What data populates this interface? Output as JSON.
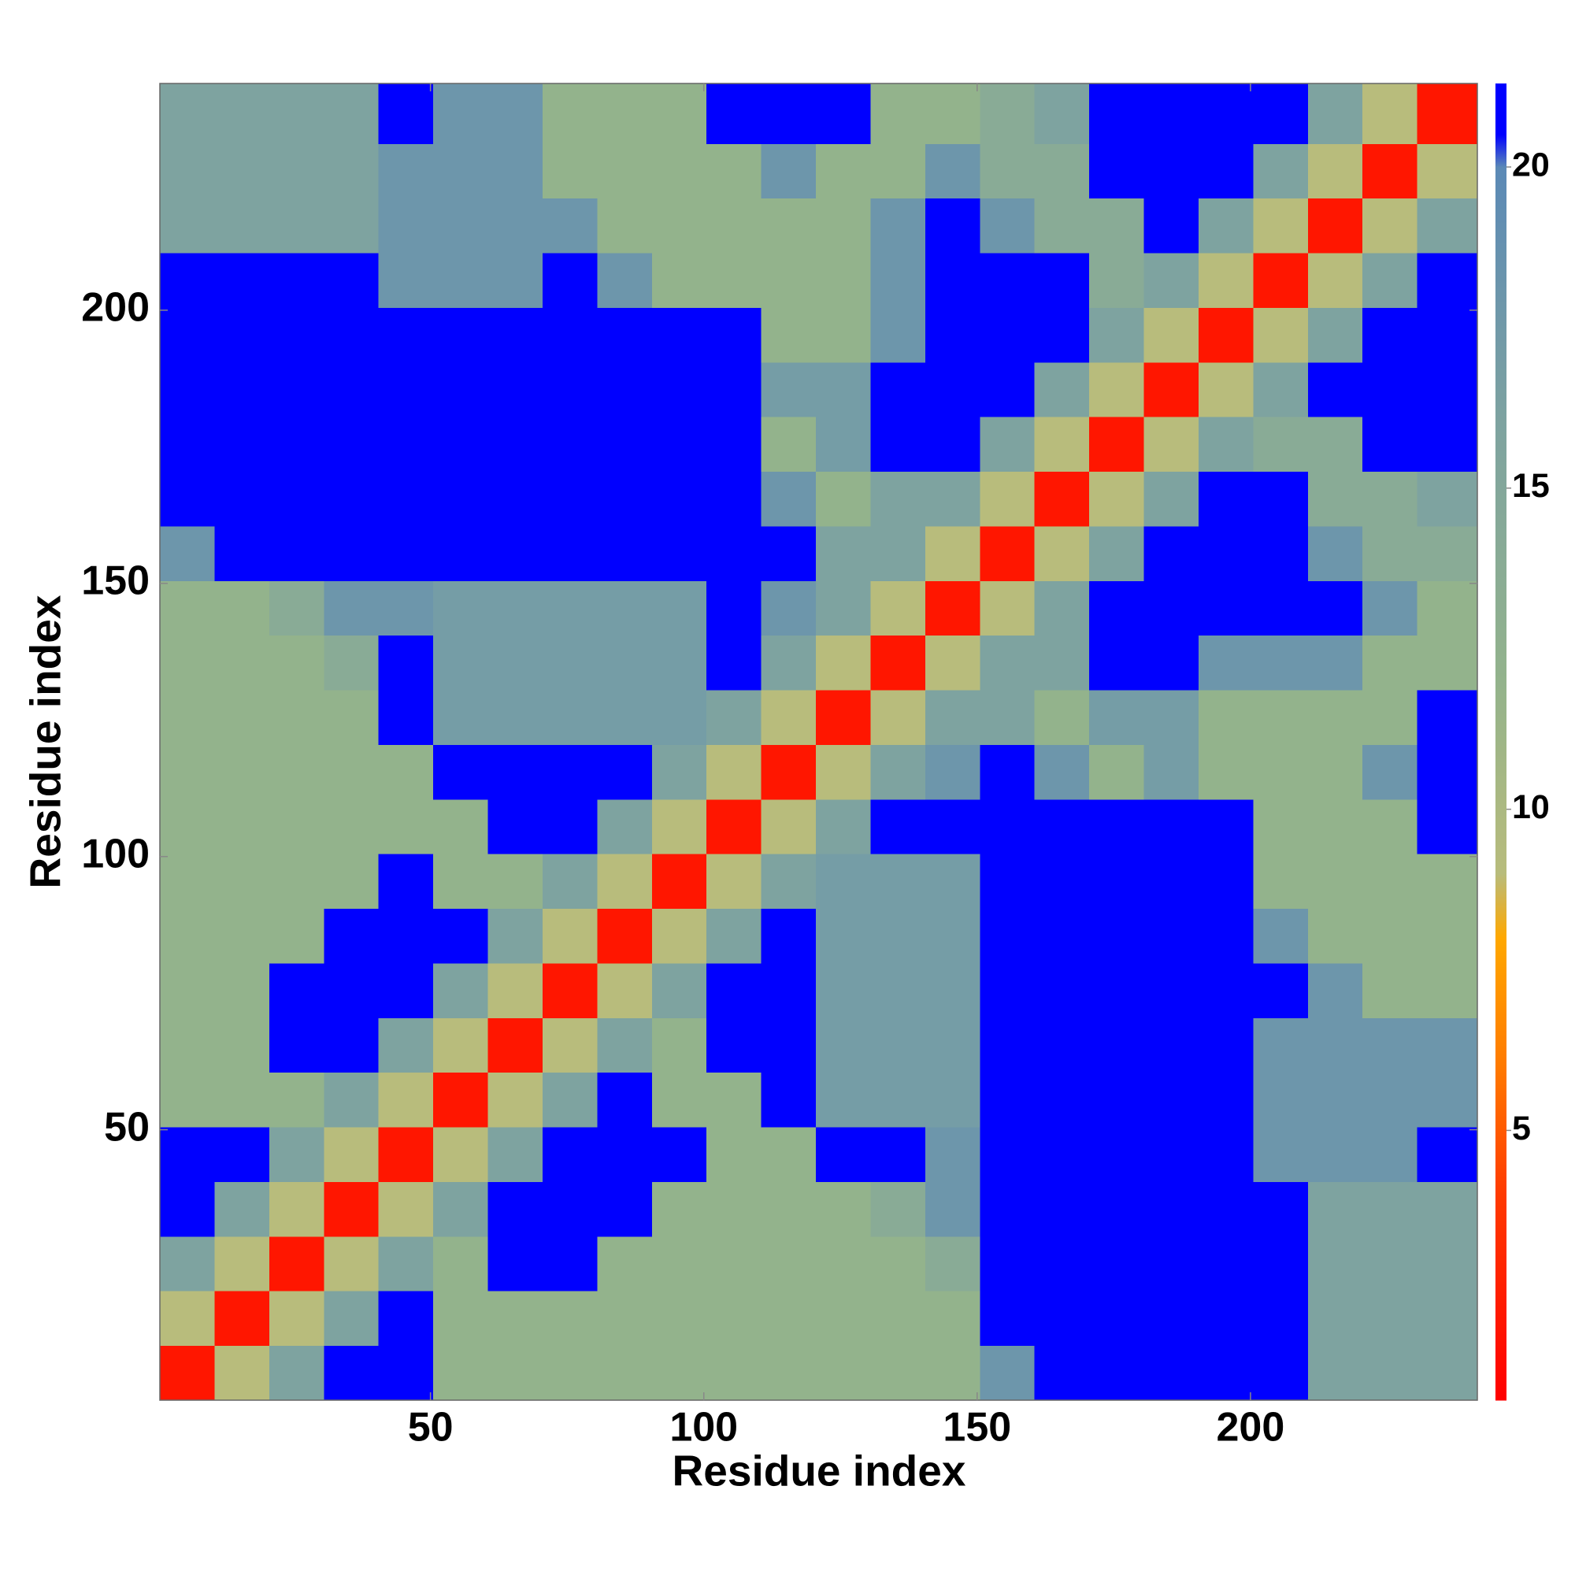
{
  "chart_data": {
    "type": "heatmap",
    "xlabel": "Residue index",
    "ylabel": "Residue index",
    "xlim": [
      0.5,
      241.5
    ],
    "ylim": [
      0.5,
      241.5
    ],
    "xticks": [
      50,
      100,
      150,
      200
    ],
    "yticks": [
      50,
      100,
      150,
      200
    ],
    "xbins": [
      0.5,
      10.5,
      20.5,
      30.5,
      40.5,
      50.5,
      60.5,
      70.5,
      80.5,
      90.5,
      100.5,
      110.5,
      120.5,
      130.5,
      140.5,
      150.5,
      160.5,
      170.5,
      180.5,
      190.5,
      200.5,
      210.5,
      220.5,
      230.5,
      241.5
    ],
    "ybins": [
      0.5,
      10.5,
      20.5,
      30.5,
      40.5,
      50.5,
      60.5,
      70.5,
      80.5,
      90.5,
      100.5,
      110.5,
      120.5,
      130.5,
      140.5,
      150.5,
      160.5,
      170.5,
      180.5,
      190.5,
      200.5,
      210.5,
      220.5,
      230.5,
      241.5
    ],
    "z": [
      [
        2,
        9,
        16,
        21,
        21,
        12,
        12,
        12,
        12,
        12,
        12,
        12,
        12,
        12,
        12,
        18,
        21,
        21,
        21,
        21,
        21,
        16,
        16,
        16
      ],
      [
        9,
        2,
        9,
        16,
        21,
        12,
        12,
        12,
        12,
        12,
        12,
        12,
        12,
        12,
        12,
        21,
        21,
        21,
        21,
        21,
        21,
        16,
        16,
        16
      ],
      [
        16,
        9,
        2,
        9,
        16,
        12,
        21,
        21,
        12,
        12,
        12,
        12,
        12,
        12,
        14,
        21,
        21,
        21,
        21,
        21,
        21,
        16,
        16,
        16
      ],
      [
        21,
        16,
        9,
        2,
        9,
        16,
        21,
        21,
        21,
        12,
        12,
        12,
        12,
        14,
        18,
        21,
        21,
        21,
        21,
        21,
        21,
        16,
        16,
        16
      ],
      [
        21,
        21,
        16,
        9,
        2,
        9,
        16,
        21,
        21,
        21,
        12,
        12,
        21,
        21,
        18,
        21,
        21,
        21,
        21,
        21,
        18,
        18,
        18,
        21
      ],
      [
        12,
        12,
        12,
        16,
        9,
        2,
        9,
        16,
        21,
        12,
        12,
        21,
        17,
        17,
        17,
        21,
        21,
        21,
        21,
        21,
        18,
        18,
        18,
        18
      ],
      [
        12,
        12,
        21,
        21,
        16,
        9,
        2,
        9,
        16,
        12,
        21,
        21,
        17,
        17,
        17,
        21,
        21,
        21,
        21,
        21,
        18,
        18,
        18,
        18
      ],
      [
        12,
        12,
        21,
        21,
        21,
        16,
        9,
        2,
        9,
        16,
        21,
        21,
        17,
        17,
        17,
        21,
        21,
        21,
        21,
        21,
        21,
        18,
        12,
        12
      ],
      [
        12,
        12,
        12,
        21,
        21,
        21,
        16,
        9,
        2,
        9,
        16,
        21,
        17,
        17,
        17,
        21,
        21,
        21,
        21,
        21,
        18,
        12,
        12,
        12
      ],
      [
        12,
        12,
        12,
        12,
        21,
        12,
        12,
        16,
        9,
        2,
        9,
        16,
        17,
        17,
        17,
        21,
        21,
        21,
        21,
        21,
        12,
        12,
        12,
        12
      ],
      [
        12,
        12,
        12,
        12,
        12,
        12,
        21,
        21,
        16,
        9,
        2,
        9,
        16,
        21,
        21,
        21,
        21,
        21,
        21,
        21,
        12,
        12,
        12,
        21
      ],
      [
        12,
        12,
        12,
        12,
        12,
        21,
        21,
        21,
        21,
        16,
        9,
        2,
        9,
        16,
        18,
        21,
        18,
        12,
        17,
        12,
        12,
        12,
        18,
        21
      ],
      [
        12,
        12,
        12,
        12,
        21,
        17,
        17,
        17,
        17,
        17,
        16,
        9,
        2,
        9,
        16,
        16,
        12,
        17,
        17,
        12,
        12,
        12,
        12,
        21
      ],
      [
        12,
        12,
        12,
        14,
        21,
        17,
        17,
        17,
        17,
        17,
        21,
        16,
        9,
        2,
        9,
        16,
        16,
        21,
        21,
        18,
        18,
        18,
        12,
        12
      ],
      [
        12,
        12,
        14,
        18,
        18,
        17,
        17,
        17,
        17,
        17,
        21,
        18,
        16,
        9,
        2,
        9,
        16,
        21,
        21,
        21,
        21,
        21,
        18,
        12
      ],
      [
        18,
        21,
        21,
        21,
        21,
        21,
        21,
        21,
        21,
        21,
        21,
        21,
        16,
        16,
        9,
        2,
        9,
        16,
        21,
        21,
        21,
        18,
        14,
        14
      ],
      [
        21,
        21,
        21,
        21,
        21,
        21,
        21,
        21,
        21,
        21,
        21,
        18,
        12,
        16,
        16,
        9,
        2,
        9,
        16,
        21,
        21,
        14,
        14,
        16
      ],
      [
        21,
        21,
        21,
        21,
        21,
        21,
        21,
        21,
        21,
        21,
        21,
        12,
        17,
        21,
        21,
        16,
        9,
        2,
        9,
        16,
        14,
        14,
        21,
        21
      ],
      [
        21,
        21,
        21,
        21,
        21,
        21,
        21,
        21,
        21,
        21,
        21,
        17,
        17,
        21,
        21,
        21,
        16,
        9,
        2,
        9,
        16,
        21,
        21,
        21
      ],
      [
        21,
        21,
        21,
        21,
        21,
        21,
        21,
        21,
        21,
        21,
        21,
        12,
        12,
        18,
        21,
        21,
        21,
        16,
        9,
        2,
        9,
        16,
        21,
        21
      ],
      [
        21,
        21,
        21,
        21,
        18,
        18,
        18,
        21,
        18,
        12,
        12,
        12,
        12,
        18,
        21,
        21,
        21,
        14,
        16,
        9,
        2,
        9,
        16,
        21
      ],
      [
        16,
        16,
        16,
        16,
        18,
        18,
        18,
        18,
        12,
        12,
        12,
        12,
        12,
        18,
        21,
        18,
        14,
        14,
        21,
        16,
        9,
        2,
        9,
        16
      ],
      [
        16,
        16,
        16,
        16,
        18,
        18,
        18,
        12,
        12,
        12,
        12,
        18,
        12,
        12,
        18,
        14,
        14,
        21,
        21,
        21,
        16,
        9,
        2,
        9
      ],
      [
        16,
        16,
        16,
        16,
        21,
        18,
        18,
        12,
        12,
        12,
        21,
        21,
        21,
        12,
        12,
        14,
        16,
        21,
        21,
        21,
        21,
        16,
        9,
        2
      ]
    ],
    "colorbar": {
      "lim": [
        0.8,
        21.3
      ],
      "ticks": [
        5,
        10,
        15,
        20
      ]
    },
    "colorscale": [
      [
        0.8,
        "#ff0000"
      ],
      [
        4,
        "#ff3a00"
      ],
      [
        6,
        "#ff7a00"
      ],
      [
        8,
        "#ffa800"
      ],
      [
        9,
        "#b8bc7c"
      ],
      [
        12,
        "#93b38c"
      ],
      [
        16,
        "#7ea3a0"
      ],
      [
        20,
        "#5b89b6"
      ],
      [
        20.5,
        "#0000ff"
      ],
      [
        21.3,
        "#0000ff"
      ]
    ]
  }
}
